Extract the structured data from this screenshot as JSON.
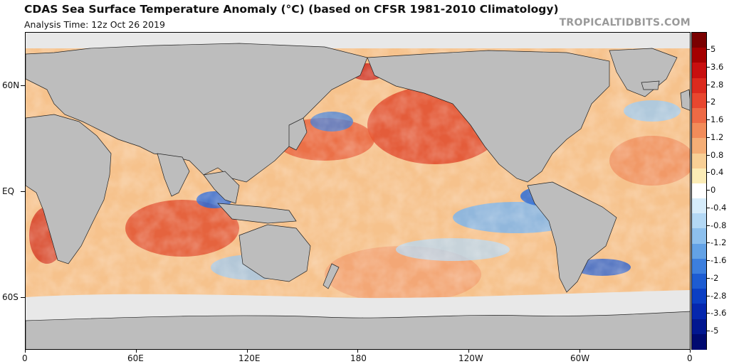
{
  "header": {
    "title": "CDAS Sea Surface Temperature Anomaly (°C) (based on CFSR 1981-2010 Climatology)",
    "subtitle": "Analysis Time: 12z Oct 26 2019",
    "brand": "TROPICALTIDBITS.COM"
  },
  "map": {
    "lat_labels": [
      "60N",
      "EQ",
      "60S"
    ],
    "lon_labels": [
      "0",
      "60E",
      "120E",
      "180",
      "120W",
      "60W",
      "0"
    ],
    "colors": {
      "land": "#bdbdbd",
      "ice": "#e8e8e8",
      "land_border": "#222222"
    }
  },
  "colorbar": {
    "labels": [
      "5",
      "3.6",
      "2.8",
      "2",
      "1.6",
      "1.2",
      "0.8",
      "0.4",
      "0",
      "-0.4",
      "-0.8",
      "-1.2",
      "-1.6",
      "-2",
      "-2.8",
      "-3.6",
      "-5"
    ],
    "colors": [
      "#7a0000",
      "#a50000",
      "#c80f0f",
      "#dc2a1e",
      "#e8472f",
      "#ee6a45",
      "#f28c5a",
      "#f5ae76",
      "#f8cf95",
      "#fbecb6",
      "#ffffff",
      "#d6ecfb",
      "#b3d8f5",
      "#8dc0ee",
      "#63a2e6",
      "#3c7fde",
      "#1d5cd2",
      "#0b3fc4",
      "#0527ae",
      "#021790",
      "#000a70"
    ]
  }
}
